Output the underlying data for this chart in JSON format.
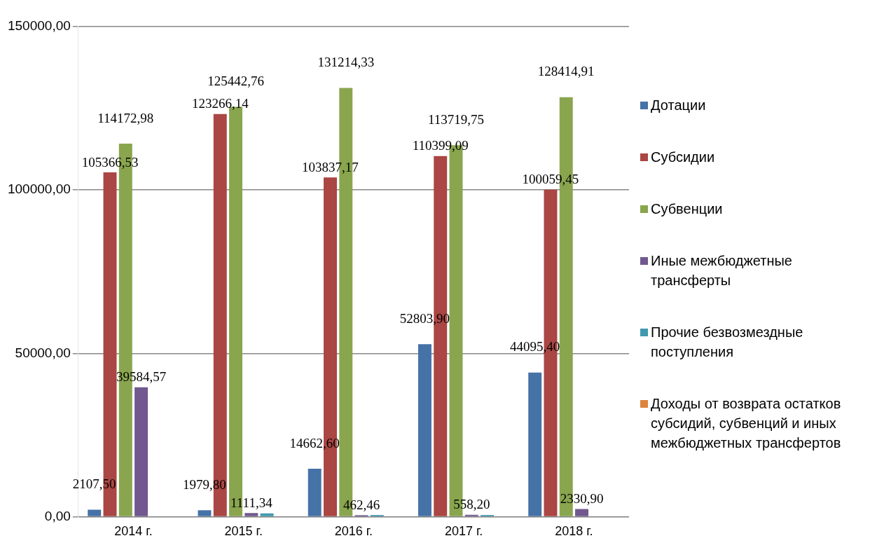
{
  "chart_data": {
    "type": "bar",
    "categories": [
      "2014 г.",
      "2015 г.",
      "2016 г.",
      "2017 г.",
      "2018 г."
    ],
    "ylim": [
      0,
      150000
    ],
    "yticks": [
      {
        "value": 0,
        "label": "0,00"
      },
      {
        "value": 50000,
        "label": "50000,00"
      },
      {
        "value": 100000,
        "label": "100000,00"
      },
      {
        "value": 150000,
        "label": "150000,00"
      }
    ],
    "grid": "y",
    "legend": "right",
    "series": [
      {
        "name": "Дотации",
        "color": "#4572a7",
        "values": [
          2107.5,
          1979.8,
          14662.6,
          52803.9,
          44095.4
        ],
        "value_labels": [
          "2107,50",
          "1979,80",
          "14662,60",
          "52803,90",
          "44095,40"
        ]
      },
      {
        "name": "Субсидии",
        "color": "#aa4643",
        "values": [
          105366.53,
          123266.14,
          103837.17,
          110399.09,
          100059.45
        ],
        "value_labels": [
          "105366,53",
          "123266,14",
          "103837,17",
          "110399,09",
          "100059,45"
        ]
      },
      {
        "name": "Субвенции",
        "color": "#89a54e",
        "values": [
          114172.98,
          125442.76,
          131214.33,
          113719.75,
          128414.91
        ],
        "value_labels": [
          "114172,98",
          "125442,76",
          "131214,33",
          "113719,75",
          "128414,91"
        ]
      },
      {
        "name": "Иные межбюджетные трансферты",
        "color": "#71588f",
        "values": [
          39584.57,
          1111.34,
          462.46,
          558.2,
          2330.9
        ],
        "value_labels": [
          "39584,57",
          "1111,34",
          "462,46",
          "558,20",
          "2330,90"
        ]
      },
      {
        "name": "Прочие безвозмездные поступления",
        "color": "#4198af",
        "values": [
          0,
          1000,
          500,
          500,
          0
        ]
      },
      {
        "name": "Доходы от возврата остатков субсидий, субвенций и иных межбюджетных трансфертов",
        "color": "#db843d",
        "values": [
          0,
          0,
          0,
          0,
          0
        ]
      }
    ]
  }
}
